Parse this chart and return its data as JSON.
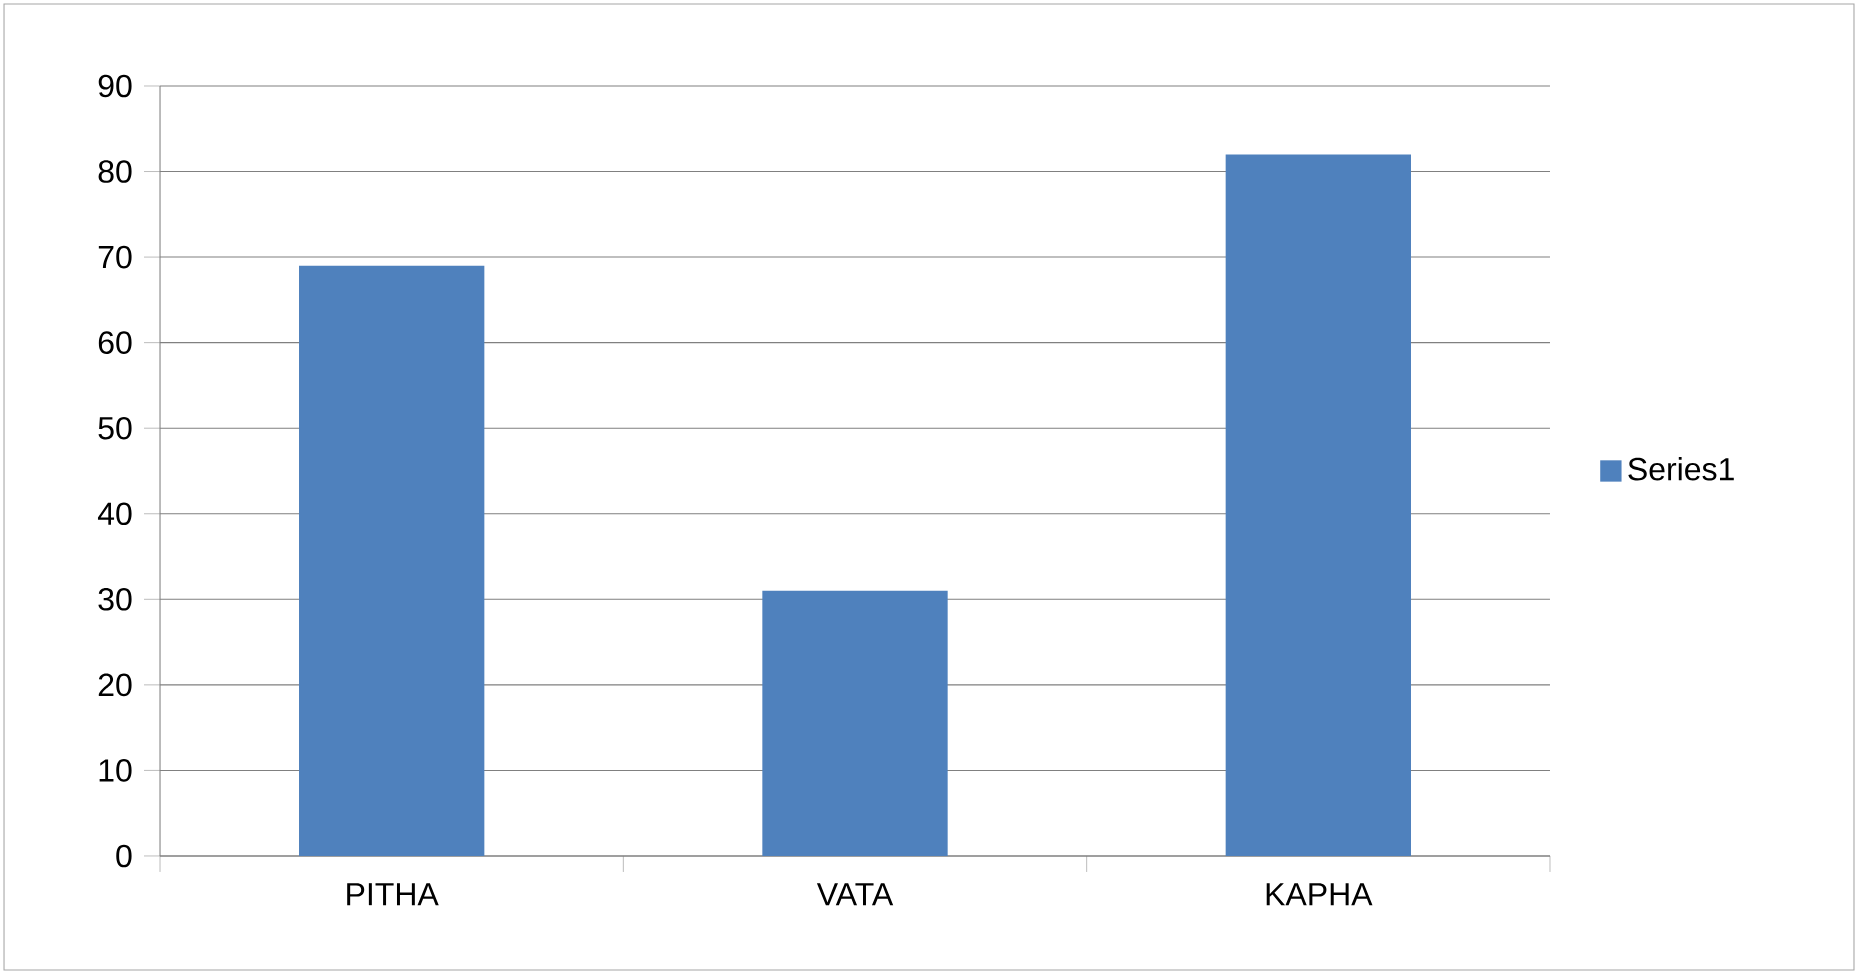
{
  "chart_data": {
    "type": "bar",
    "categories": [
      "PITHA",
      "VATA",
      "KAPHA"
    ],
    "series": [
      {
        "name": "Series1",
        "color": "#4f81bd",
        "values": [
          69,
          31,
          82
        ]
      }
    ],
    "ylim": [
      0,
      90
    ],
    "yticks": [
      0,
      10,
      20,
      30,
      40,
      50,
      60,
      70,
      80,
      90
    ],
    "grid": "y",
    "legend": "right"
  }
}
